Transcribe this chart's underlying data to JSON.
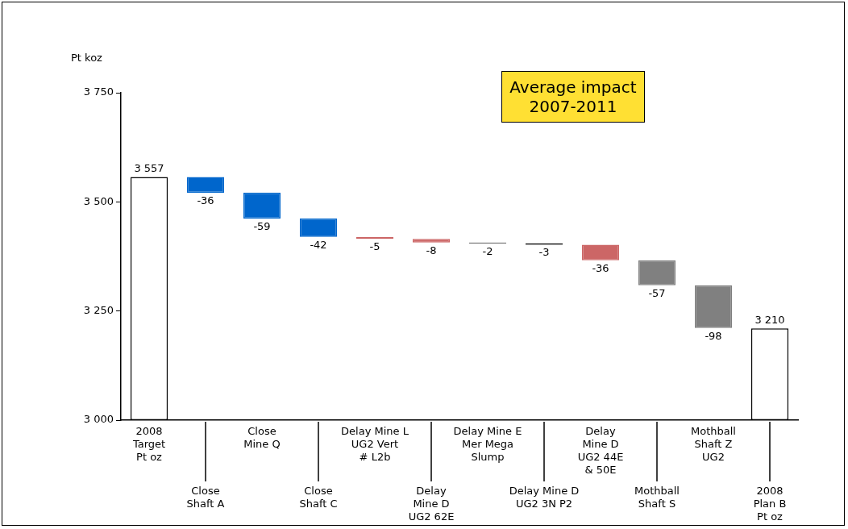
{
  "chart_data": {
    "type": "bar",
    "ylabel": "Pt koz",
    "categories": [
      "2008\nTarget\nPt oz",
      "Close\nShaft A",
      "Close\nMine Q",
      "Close\nShaft C",
      "Delay Mine L\nUG2 Vert\n# L2b",
      "Delay\nMine D\nUG2 62E",
      "Delay Mine E\nMer Mega\nSlump",
      "Delay Mine D\nUG2 3N P2",
      "Delay\nMine D\nUG2 44E\n& 50E",
      "Mothball\nShaft S",
      "Mothball\nShaft Z\nUG2",
      "2008\nPlan B\nPt oz"
    ],
    "values": [
      3557,
      -36,
      -59,
      -42,
      -5,
      -8,
      -2,
      -3,
      -36,
      -57,
      -98,
      3210
    ],
    "base": [
      null,
      3557,
      3521,
      3462,
      3420,
      3415,
      3407,
      3405,
      3402,
      3366,
      3309,
      null
    ],
    "colors": [
      "#ffffff",
      "#0066cc",
      "#0066cc",
      "#0066cc",
      "#cc6666",
      "#cc6666",
      "#000000",
      "#000000",
      "#cc6666",
      "#808080",
      "#808080",
      "#ffffff"
    ],
    "value_labels": [
      "3 557",
      "-36",
      "-59",
      "-42",
      "-5",
      "-8",
      "-2",
      "-3",
      "-36",
      "-57",
      "-98",
      "3 210"
    ],
    "ylim": [
      3000,
      3750
    ],
    "yticks": [
      {
        "value": 3000,
        "label": "3 000"
      },
      {
        "value": 3250,
        "label": "3 250"
      },
      {
        "value": 3500,
        "label": "3 500"
      },
      {
        "value": 3750,
        "label": "3 750"
      }
    ],
    "annotations": [
      "Average impact\n2007-2011"
    ],
    "grid": false,
    "legend": false
  }
}
